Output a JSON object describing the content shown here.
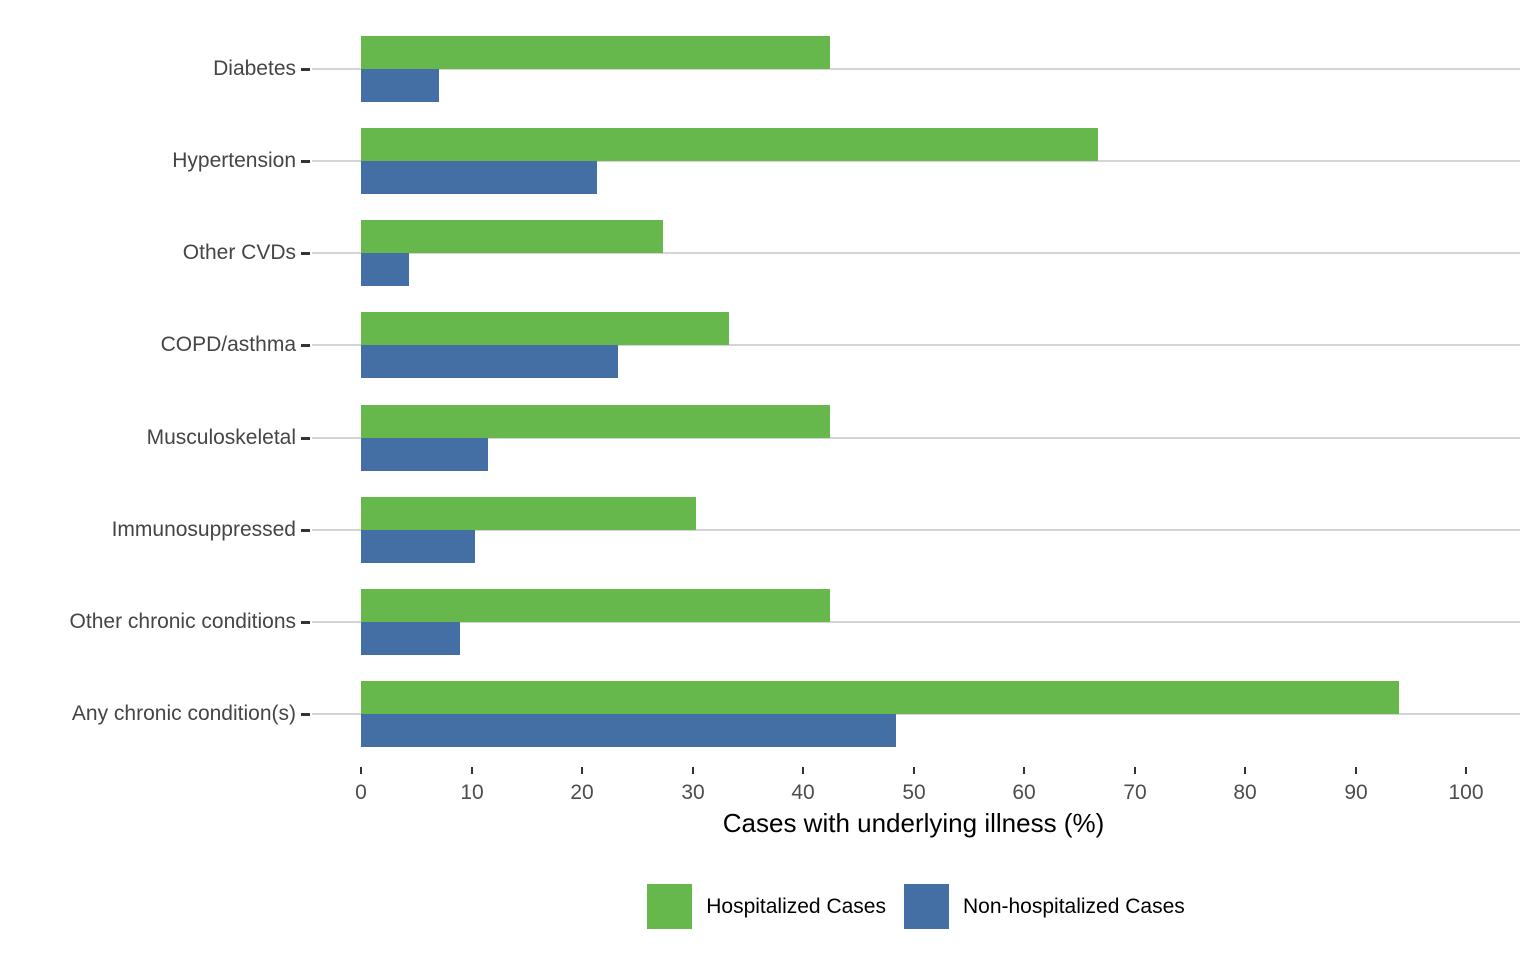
{
  "chart_data": {
    "type": "bar",
    "orientation": "horizontal",
    "title": "",
    "xlabel": "Cases with underlying illness (%)",
    "ylabel": "",
    "xlim": [
      0,
      100
    ],
    "xticks": [
      0,
      10,
      20,
      30,
      40,
      50,
      60,
      70,
      80,
      90,
      100
    ],
    "grid": "horizontal gridline at each category, no vertical gridlines",
    "legend_position": "bottom",
    "categories": [
      "Diabetes",
      "Hypertension",
      "Other CVDs",
      "COPD/asthma",
      "Musculoskeletal",
      "Immunosuppressed",
      "Other chronic conditions",
      "Any chronic condition(s)"
    ],
    "series": [
      {
        "name": "Hospitalized Cases",
        "color": "#66b84c",
        "values": [
          42.4,
          66.7,
          27.3,
          33.3,
          42.4,
          30.3,
          42.4,
          93.9
        ]
      },
      {
        "name": "Non-hospitalized Cases",
        "color": "#436fa5",
        "values": [
          7.1,
          21.4,
          4.3,
          23.3,
          11.5,
          10.3,
          9.0,
          48.4
        ]
      }
    ]
  }
}
